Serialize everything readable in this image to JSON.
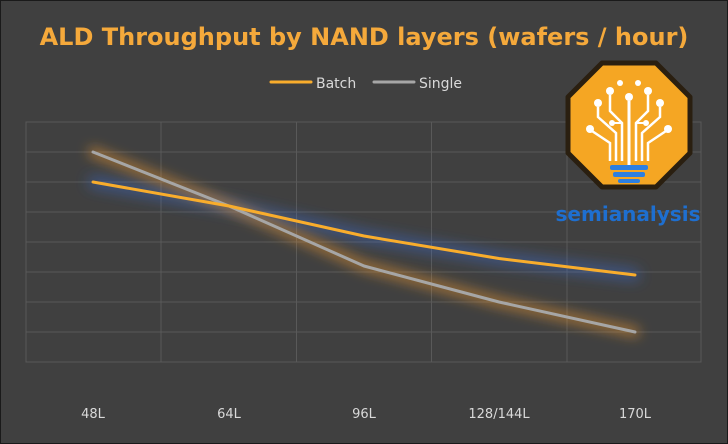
{
  "chart_data": {
    "type": "line",
    "title": "ALD Throughput by NAND layers (wafers / hour)",
    "categories": [
      "48L",
      "64L",
      "96L",
      "128/144L",
      "170L"
    ],
    "series": [
      {
        "name": "Batch",
        "color": "#f9ad2c",
        "values": [
          5.0,
          4.2,
          3.2,
          2.45,
          1.9
        ]
      },
      {
        "name": "Single",
        "color": "#a6a6a6",
        "values": [
          6.0,
          4.2,
          2.2,
          1.0,
          0.0
        ]
      }
    ],
    "ylim": [
      -1,
      7
    ],
    "grid": true,
    "xlabel": "",
    "ylabel": "",
    "legend_position": "top-center"
  },
  "logo": {
    "brand_part1": "semi",
    "brand_part2": "analysis",
    "accent_color": "#f5a623",
    "text_color": "#1e6fd0"
  }
}
